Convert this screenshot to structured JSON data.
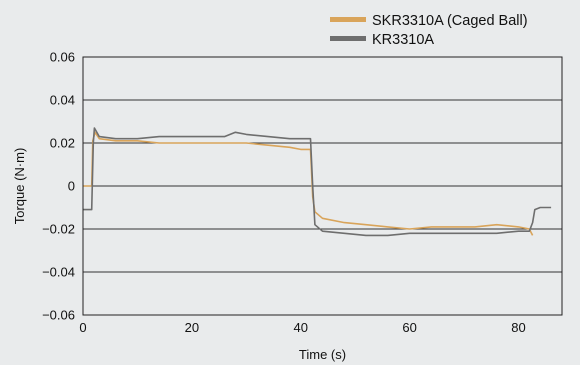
{
  "chart_data": {
    "type": "line",
    "title": "",
    "xlabel": "Time (s)",
    "ylabel": "Torque (N·m)",
    "xlim": [
      0,
      88
    ],
    "ylim": [
      -0.06,
      0.06
    ],
    "x_ticks": [
      0,
      20,
      40,
      60,
      80
    ],
    "x_tick_labels": [
      "0",
      "20",
      "40",
      "60",
      "80"
    ],
    "y_ticks": [
      0.06,
      0.04,
      0.02,
      0,
      -0.02,
      -0.04,
      -0.06
    ],
    "y_tick_labels": [
      "0.06",
      "0.04",
      "0.02",
      "0",
      "−0.02",
      "−0.04",
      "−0.06"
    ],
    "grid": "horizontal",
    "legend_position": "top-right",
    "series": [
      {
        "name": "SKR3310A (Caged Ball)",
        "color": "#d9a45a",
        "points": [
          [
            0,
            0
          ],
          [
            1.6,
            0
          ],
          [
            1.8,
            0.021
          ],
          [
            2.2,
            0.025
          ],
          [
            3,
            0.022
          ],
          [
            6,
            0.021
          ],
          [
            10,
            0.021
          ],
          [
            14,
            0.02
          ],
          [
            18,
            0.02
          ],
          [
            22,
            0.02
          ],
          [
            26,
            0.02
          ],
          [
            30,
            0.02
          ],
          [
            34,
            0.019
          ],
          [
            38,
            0.018
          ],
          [
            40,
            0.017
          ],
          [
            41.8,
            0.017
          ],
          [
            42.2,
            -0.005
          ],
          [
            42.6,
            -0.012
          ],
          [
            44,
            -0.015
          ],
          [
            48,
            -0.017
          ],
          [
            52,
            -0.018
          ],
          [
            56,
            -0.019
          ],
          [
            60,
            -0.02
          ],
          [
            64,
            -0.019
          ],
          [
            68,
            -0.019
          ],
          [
            72,
            -0.019
          ],
          [
            76,
            -0.018
          ],
          [
            80,
            -0.019
          ],
          [
            82,
            -0.02
          ],
          [
            82.6,
            -0.023
          ]
        ]
      },
      {
        "name": "KR3310A",
        "color": "#6e6e6e",
        "points": [
          [
            0,
            -0.011
          ],
          [
            1.6,
            -0.011
          ],
          [
            1.9,
            0.02
          ],
          [
            2.1,
            0.027
          ],
          [
            3,
            0.023
          ],
          [
            6,
            0.022
          ],
          [
            10,
            0.022
          ],
          [
            14,
            0.023
          ],
          [
            18,
            0.023
          ],
          [
            22,
            0.023
          ],
          [
            26,
            0.023
          ],
          [
            28,
            0.025
          ],
          [
            30,
            0.024
          ],
          [
            34,
            0.023
          ],
          [
            38,
            0.022
          ],
          [
            41.8,
            0.022
          ],
          [
            42.2,
            0.0
          ],
          [
            42.6,
            -0.018
          ],
          [
            44,
            -0.021
          ],
          [
            48,
            -0.022
          ],
          [
            52,
            -0.023
          ],
          [
            56,
            -0.023
          ],
          [
            60,
            -0.022
          ],
          [
            64,
            -0.022
          ],
          [
            68,
            -0.022
          ],
          [
            72,
            -0.022
          ],
          [
            76,
            -0.022
          ],
          [
            80,
            -0.021
          ],
          [
            82,
            -0.021
          ],
          [
            82.6,
            -0.017
          ],
          [
            83,
            -0.011
          ],
          [
            84,
            -0.01
          ],
          [
            86,
            -0.01
          ]
        ]
      }
    ]
  }
}
